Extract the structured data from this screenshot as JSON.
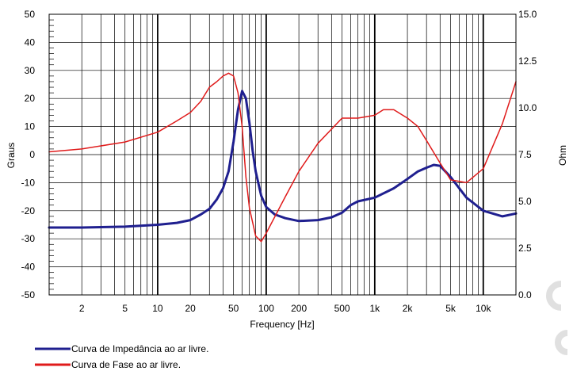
{
  "chart_data": {
    "type": "line",
    "xlabel": "Frequency [Hz]",
    "ylabel_left": "Graus",
    "ylabel_right": "Ohm",
    "xscale": "log",
    "xlim": [
      1,
      20000
    ],
    "ylim_left": [
      -50,
      50
    ],
    "ylim_right": [
      0,
      15
    ],
    "x_ticks": [
      {
        "value": 2,
        "label": "2"
      },
      {
        "value": 5,
        "label": "5"
      },
      {
        "value": 10,
        "label": "10"
      },
      {
        "value": 20,
        "label": "20"
      },
      {
        "value": 50,
        "label": "50"
      },
      {
        "value": 100,
        "label": "100"
      },
      {
        "value": 200,
        "label": "200"
      },
      {
        "value": 500,
        "label": "500"
      },
      {
        "value": 1000,
        "label": "1k"
      },
      {
        "value": 2000,
        "label": "2k"
      },
      {
        "value": 5000,
        "label": "5k"
      },
      {
        "value": 10000,
        "label": "10k"
      }
    ],
    "y_left_ticks": [
      {
        "value": 50,
        "label": "50"
      },
      {
        "value": 40,
        "label": "40"
      },
      {
        "value": 30,
        "label": "30"
      },
      {
        "value": 20,
        "label": "20"
      },
      {
        "value": 10,
        "label": "10"
      },
      {
        "value": 0,
        "label": "0"
      },
      {
        "value": -10,
        "label": "-10"
      },
      {
        "value": -20,
        "label": "-20"
      },
      {
        "value": -30,
        "label": "-30"
      },
      {
        "value": -40,
        "label": "-40"
      },
      {
        "value": -50,
        "label": "-50"
      }
    ],
    "y_right_ticks": [
      {
        "value": 15,
        "label": "15.0"
      },
      {
        "value": 12.5,
        "label": "12.5"
      },
      {
        "value": 10,
        "label": "10.0"
      },
      {
        "value": 7.5,
        "label": "7.5"
      },
      {
        "value": 5,
        "label": "5.0"
      },
      {
        "value": 2.5,
        "label": "2.5"
      },
      {
        "value": 0,
        "label": "0.0"
      }
    ],
    "grid": true,
    "legend_position": "bottom-left",
    "series": [
      {
        "name": "Curva de Impedância ao ar livre.",
        "axis": "right",
        "color": "#1f1f8f",
        "x": [
          1,
          2,
          5,
          10,
          15,
          20,
          25,
          30,
          35,
          40,
          45,
          50,
          55,
          60,
          65,
          70,
          75,
          80,
          90,
          100,
          120,
          150,
          200,
          300,
          400,
          500,
          600,
          700,
          1000,
          1500,
          2000,
          2500,
          3000,
          3500,
          4000,
          5000,
          7000,
          10000,
          15000,
          20000
        ],
        "values": [
          3.6,
          3.6,
          3.65,
          3.75,
          3.85,
          4.0,
          4.3,
          4.6,
          5.1,
          5.7,
          6.6,
          8.2,
          9.9,
          10.9,
          10.5,
          9.2,
          7.7,
          6.6,
          5.3,
          4.7,
          4.3,
          4.1,
          3.95,
          4.0,
          4.15,
          4.4,
          4.8,
          5.0,
          5.2,
          5.7,
          6.2,
          6.6,
          6.8,
          6.95,
          6.9,
          6.3,
          5.2,
          4.5,
          4.2,
          4.35
        ]
      },
      {
        "name": "Curva de Fase ao ar livre.",
        "axis": "left",
        "color": "#e01b1b",
        "x": [
          1,
          2,
          5,
          10,
          15,
          20,
          25,
          30,
          35,
          40,
          45,
          50,
          55,
          60,
          65,
          70,
          80,
          90,
          100,
          150,
          200,
          300,
          500,
          700,
          1000,
          1200,
          1500,
          2000,
          2500,
          3000,
          4000,
          5000,
          7000,
          10000,
          15000,
          20000
        ],
        "values": [
          1,
          2,
          4.5,
          8,
          12,
          15,
          19,
          24,
          26,
          28,
          29,
          28,
          22,
          10,
          -8,
          -19,
          -29,
          -31,
          -28,
          -15,
          -6,
          4,
          13,
          13,
          14,
          16,
          16,
          13,
          10,
          5,
          -3,
          -9,
          -10,
          -5,
          11,
          26
        ]
      }
    ]
  }
}
